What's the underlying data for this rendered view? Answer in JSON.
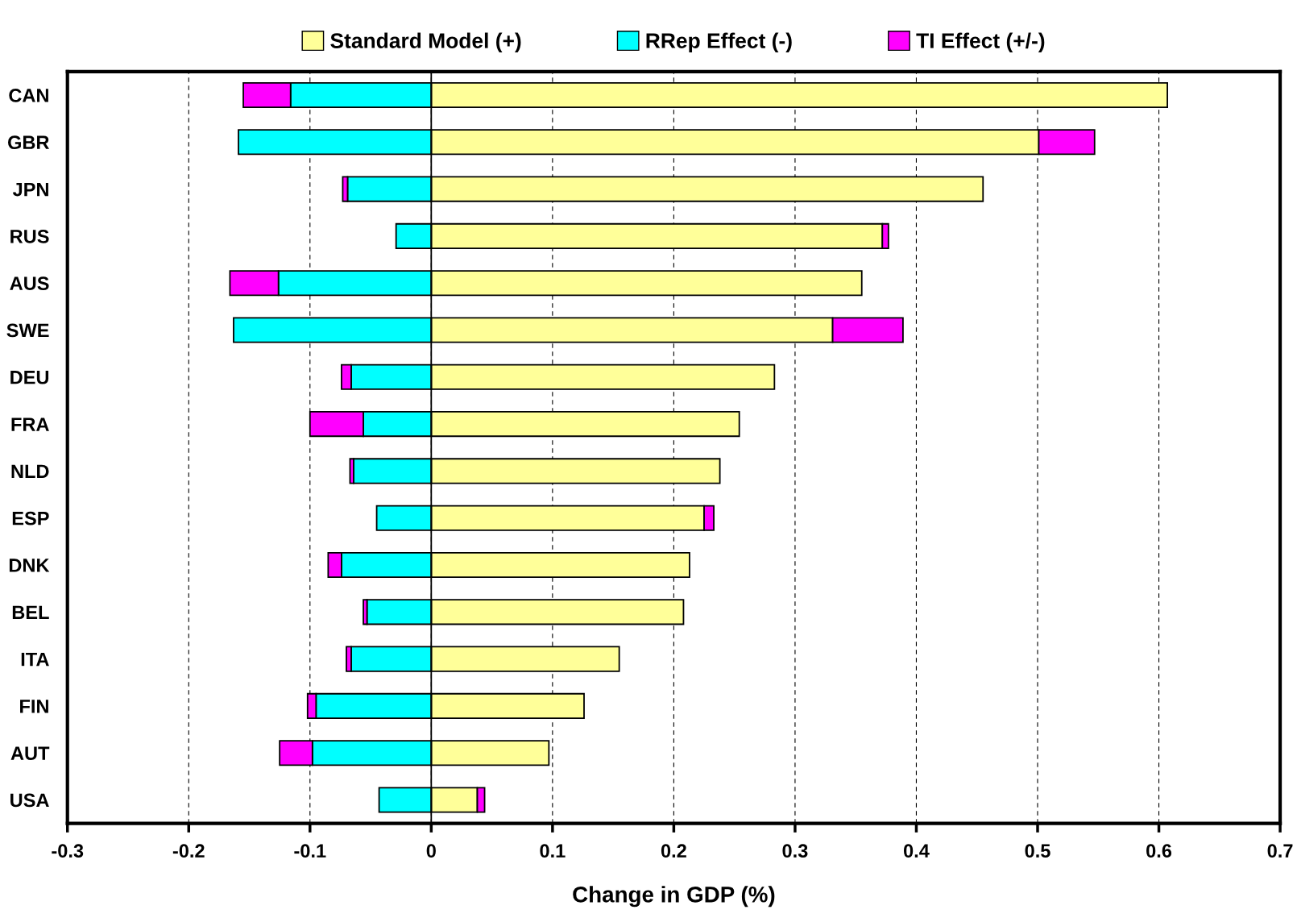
{
  "chart_data": {
    "type": "bar",
    "orientation": "horizontal",
    "stacked": true,
    "xlabel": "Change in GDP (%)",
    "categories": [
      "CAN",
      "GBR",
      "JPN",
      "RUS",
      "AUS",
      "SWE",
      "DEU",
      "FRA",
      "NLD",
      "ESP",
      "DNK",
      "BEL",
      "ITA",
      "FIN",
      "AUT",
      "USA"
    ],
    "series": [
      {
        "name": "Standard Model (+)",
        "color": "#ffff99",
        "values": [
          0.607,
          0.501,
          0.455,
          0.372,
          0.355,
          0.331,
          0.283,
          0.254,
          0.238,
          0.225,
          0.213,
          0.208,
          0.155,
          0.126,
          0.097,
          0.038
        ]
      },
      {
        "name": "RRep Effect (-)",
        "color": "#00ffff",
        "values": [
          -0.116,
          -0.159,
          -0.069,
          -0.029,
          -0.126,
          -0.163,
          -0.066,
          -0.056,
          -0.064,
          -0.045,
          -0.074,
          -0.053,
          -0.066,
          -0.095,
          -0.098,
          -0.043
        ]
      },
      {
        "name": "TI Effect (+/-)",
        "color": "#ff00ff",
        "values": [
          -0.039,
          0.046,
          -0.004,
          0.005,
          -0.04,
          0.058,
          -0.008,
          -0.044,
          -0.003,
          0.008,
          -0.011,
          -0.003,
          -0.004,
          -0.007,
          -0.027,
          0.006
        ]
      }
    ],
    "xlim": [
      -0.3,
      0.7
    ],
    "xticks": [
      -0.3,
      -0.2,
      -0.1,
      0,
      0.1,
      0.2,
      0.3,
      0.4,
      0.5,
      0.6,
      0.7
    ],
    "ref_lines": [
      {
        "axis": "x",
        "value": 0
      }
    ],
    "grid": "x",
    "legend": "top"
  }
}
